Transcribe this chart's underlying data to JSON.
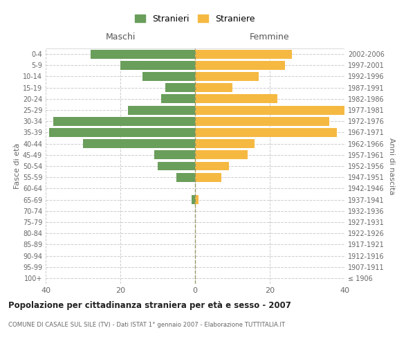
{
  "age_groups": [
    "100+",
    "95-99",
    "90-94",
    "85-89",
    "80-84",
    "75-79",
    "70-74",
    "65-69",
    "60-64",
    "55-59",
    "50-54",
    "45-49",
    "40-44",
    "35-39",
    "30-34",
    "25-29",
    "20-24",
    "15-19",
    "10-14",
    "5-9",
    "0-4"
  ],
  "birth_years": [
    "≤ 1906",
    "1907-1911",
    "1912-1916",
    "1917-1921",
    "1922-1926",
    "1927-1931",
    "1932-1936",
    "1937-1941",
    "1942-1946",
    "1947-1951",
    "1952-1956",
    "1957-1961",
    "1962-1966",
    "1967-1971",
    "1972-1976",
    "1977-1981",
    "1982-1986",
    "1987-1991",
    "1992-1996",
    "1997-2001",
    "2002-2006"
  ],
  "maschi": [
    0,
    0,
    0,
    0,
    0,
    0,
    0,
    1,
    0,
    5,
    10,
    11,
    30,
    39,
    38,
    18,
    9,
    8,
    14,
    20,
    28
  ],
  "femmine": [
    0,
    0,
    0,
    0,
    0,
    0,
    0,
    1,
    0,
    7,
    9,
    14,
    16,
    38,
    36,
    40,
    22,
    10,
    17,
    24,
    26
  ],
  "maschi_color": "#6a9e5b",
  "femmine_color": "#f5b942",
  "bg_color": "#ffffff",
  "grid_color": "#cccccc",
  "title": "Popolazione per cittadinanza straniera per età e sesso - 2007",
  "subtitle": "COMUNE DI CASALE SUL SILE (TV) - Dati ISTAT 1° gennaio 2007 - Elaborazione TUTTITALIA.IT",
  "ylabel_left": "Fasce di età",
  "ylabel_right": "Anni di nascita",
  "xlabel_maschi": "Maschi",
  "xlabel_femmine": "Femmine",
  "legend_maschi": "Stranieri",
  "legend_femmine": "Straniere",
  "xlim": 40,
  "bar_height": 0.8
}
